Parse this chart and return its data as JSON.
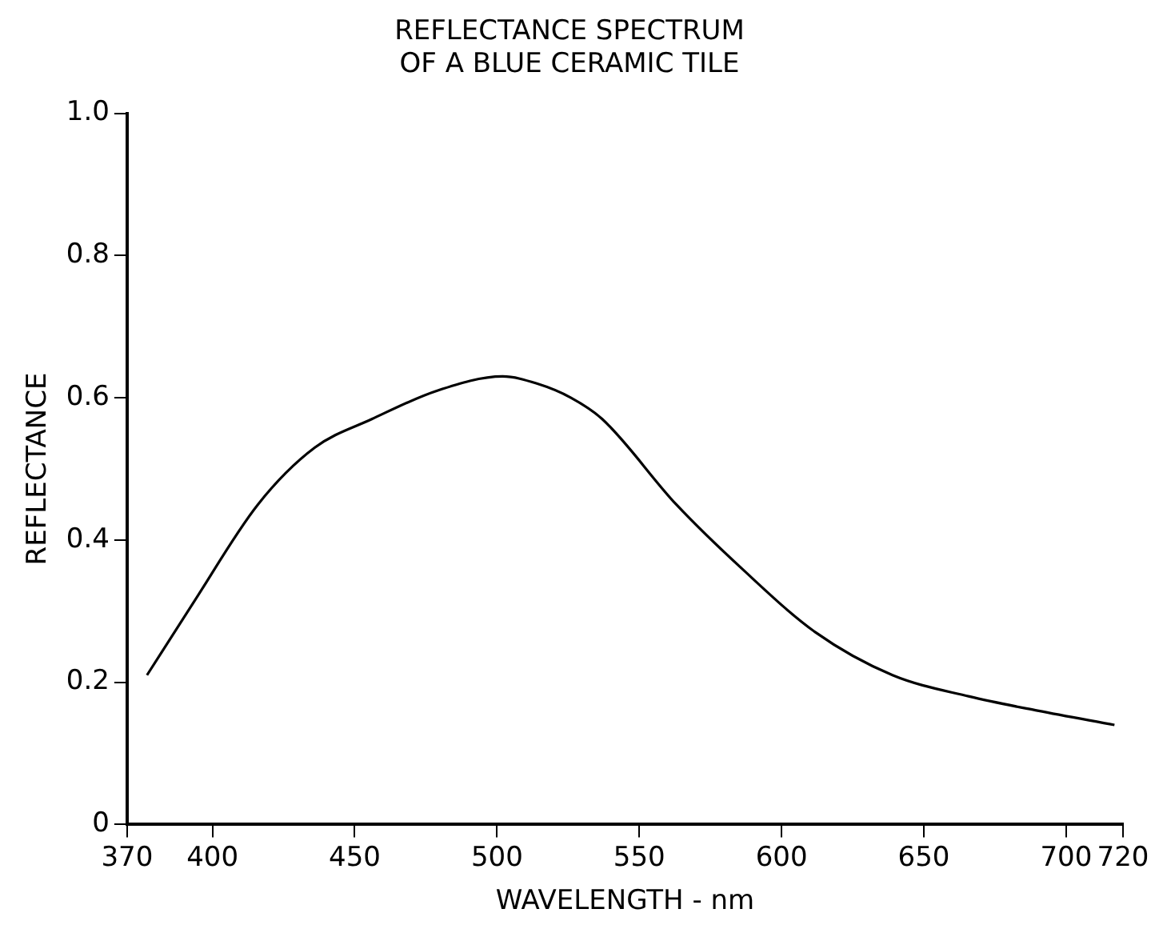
{
  "chart_data": {
    "type": "line",
    "title": "REFLECTANCE SPECTRUM\nOF A BLUE CERAMIC TILE",
    "xlabel": "WAVELENGTH - nm",
    "ylabel": "REFLECTANCE",
    "x": [
      377,
      393,
      416,
      436,
      456,
      479,
      502,
      514,
      526,
      537,
      563,
      586,
      612,
      639,
      666,
      690,
      717
    ],
    "series": [
      {
        "color": "#000000",
        "values": [
          0.21,
          0.31,
          0.45,
          0.53,
          0.57,
          0.61,
          0.63,
          0.62,
          0.6,
          0.57,
          0.45,
          0.36,
          0.27,
          0.21,
          0.18,
          0.16,
          0.14
        ]
      }
    ],
    "xlim": [
      370,
      720
    ],
    "xticks": [
      370,
      400,
      450,
      500,
      550,
      600,
      650,
      700,
      720
    ],
    "ylim": [
      0,
      1
    ],
    "yticks": [
      0,
      {
        "value": 0.2,
        "label": "0.2"
      },
      {
        "value": 0.4,
        "label": "0.4"
      },
      {
        "value": 0.6,
        "label": "0.6"
      },
      {
        "value": 0.8,
        "label": "0.8"
      },
      {
        "value": 1,
        "label": "1.0"
      }
    ],
    "grid": false,
    "legend": false,
    "marker": "none",
    "line_style": "solid"
  }
}
